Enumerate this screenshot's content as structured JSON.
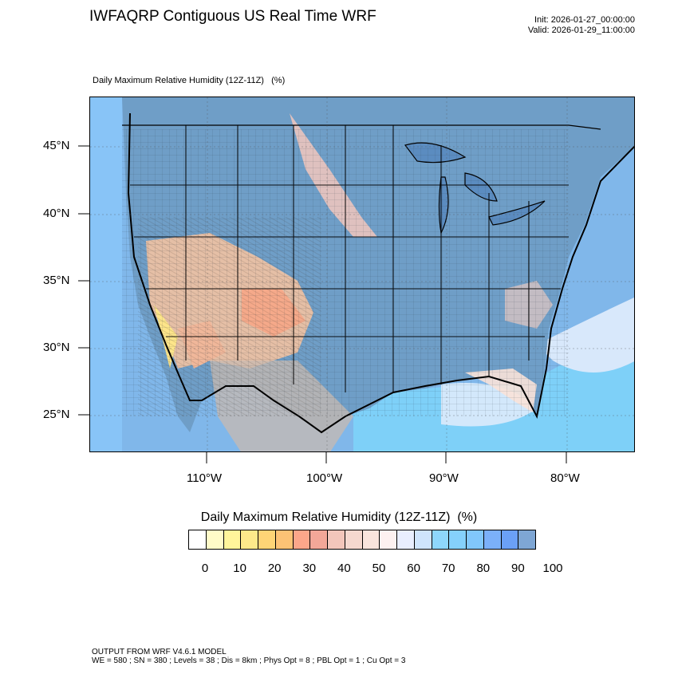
{
  "header": {
    "title": "IWFAQRP Contiguous US Real Time WRF",
    "init": "Init: 2026-01-27_00:00:00",
    "valid": "Valid: 2026-01-29_11:00:00"
  },
  "map": {
    "field_title": "Daily Maximum Relative Humidity (12Z-11Z)   (%)",
    "lat_labels": [
      "45°N",
      "40°N",
      "35°N",
      "30°N",
      "25°N"
    ],
    "lon_labels": [
      "110°W",
      "100°W",
      "90°W",
      "80°W"
    ]
  },
  "colorbar": {
    "title": "Daily Maximum Relative Humidity (12Z-11Z)  (%)",
    "colors": [
      "#ffffff",
      "#fffbc8",
      "#fff59b",
      "#fde98a",
      "#fed476",
      "#fcc275",
      "#fca68a",
      "#f3a798",
      "#f3c6bb",
      "#f5d8cf",
      "#f9e4dd",
      "#fdf1f0",
      "#e9eefe",
      "#cfe4fc",
      "#8ed7fb",
      "#85d1fc",
      "#81c7fb",
      "#7bb0f9",
      "#6ba0f6",
      "#7ea6d4"
    ],
    "tick_labels": [
      "0",
      "10",
      "20",
      "30",
      "40",
      "50",
      "60",
      "70",
      "80",
      "90",
      "100"
    ]
  },
  "footer": {
    "line1": "OUTPUT FROM WRF V4.6.1 MODEL",
    "line2": "WE = 580 ; SN = 380 ; Levels = 38 ; Dis = 8km ; Phys Opt = 8 ; PBL Opt = 1 ; Cu Opt = 3"
  }
}
